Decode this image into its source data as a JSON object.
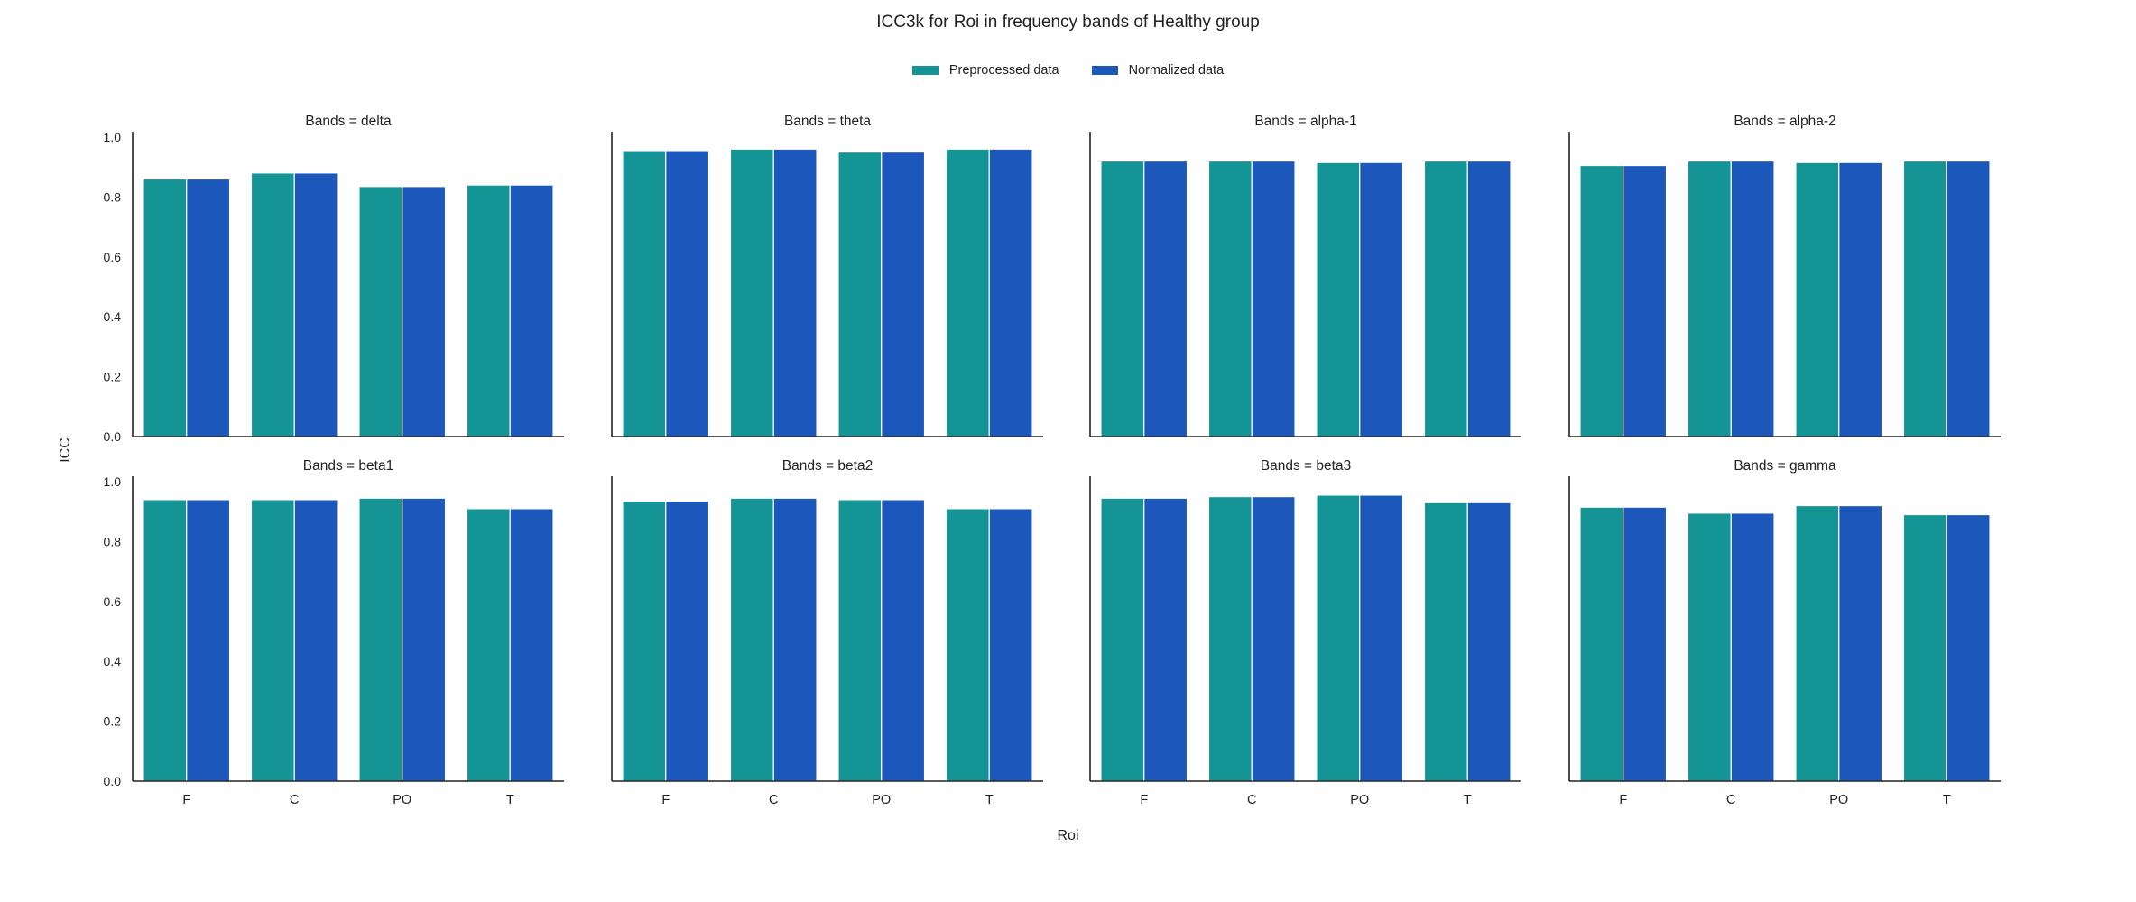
{
  "title": "ICC3k for Roi in frequency bands of Healthy group",
  "legend": {
    "preprocessed_label": "Preprocessed data",
    "normalized_label": "Normalized data"
  },
  "colors": {
    "preprocessed": "#149494",
    "normalized": "#1c58bc"
  },
  "axis": {
    "ylabel": "ICC",
    "xlabel": "Roi"
  },
  "chart_data": {
    "type": "bar",
    "title": "ICC3k for Roi in frequency bands of Healthy group",
    "xlabel": "Roi",
    "ylabel": "ICC",
    "ylim": [
      0,
      1.0
    ],
    "yticks": [
      "0.0",
      "0.2",
      "0.4",
      "0.6",
      "0.8",
      "1.0"
    ],
    "categories": [
      "F",
      "C",
      "PO",
      "T"
    ],
    "legend_position": "top-center",
    "grid": false,
    "panels": [
      {
        "title": "Bands = delta",
        "series": [
          {
            "name": "Preprocessed data",
            "values": [
              0.86,
              0.88,
              0.835,
              0.84
            ]
          },
          {
            "name": "Normalized data",
            "values": [
              0.86,
              0.88,
              0.835,
              0.84
            ]
          }
        ]
      },
      {
        "title": "Bands = theta",
        "series": [
          {
            "name": "Preprocessed data",
            "values": [
              0.955,
              0.96,
              0.95,
              0.96
            ]
          },
          {
            "name": "Normalized data",
            "values": [
              0.955,
              0.96,
              0.95,
              0.96
            ]
          }
        ]
      },
      {
        "title": "Bands = alpha-1",
        "series": [
          {
            "name": "Preprocessed data",
            "values": [
              0.92,
              0.92,
              0.915,
              0.92
            ]
          },
          {
            "name": "Normalized data",
            "values": [
              0.92,
              0.92,
              0.915,
              0.92
            ]
          }
        ]
      },
      {
        "title": "Bands = alpha-2",
        "series": [
          {
            "name": "Preprocessed data",
            "values": [
              0.905,
              0.92,
              0.915,
              0.92
            ]
          },
          {
            "name": "Normalized data",
            "values": [
              0.905,
              0.92,
              0.915,
              0.92
            ]
          }
        ]
      },
      {
        "title": "Bands = beta1",
        "series": [
          {
            "name": "Preprocessed data",
            "values": [
              0.94,
              0.94,
              0.945,
              0.91
            ]
          },
          {
            "name": "Normalized data",
            "values": [
              0.94,
              0.94,
              0.945,
              0.91
            ]
          }
        ]
      },
      {
        "title": "Bands = beta2",
        "series": [
          {
            "name": "Preprocessed data",
            "values": [
              0.935,
              0.945,
              0.94,
              0.91
            ]
          },
          {
            "name": "Normalized data",
            "values": [
              0.935,
              0.945,
              0.94,
              0.91
            ]
          }
        ]
      },
      {
        "title": "Bands = beta3",
        "series": [
          {
            "name": "Preprocessed data",
            "values": [
              0.945,
              0.95,
              0.955,
              0.93
            ]
          },
          {
            "name": "Normalized data",
            "values": [
              0.945,
              0.95,
              0.955,
              0.93
            ]
          }
        ]
      },
      {
        "title": "Bands = gamma",
        "series": [
          {
            "name": "Preprocessed data",
            "values": [
              0.915,
              0.895,
              0.92,
              0.89
            ]
          },
          {
            "name": "Normalized data",
            "values": [
              0.915,
              0.895,
              0.92,
              0.89
            ]
          }
        ]
      }
    ]
  }
}
